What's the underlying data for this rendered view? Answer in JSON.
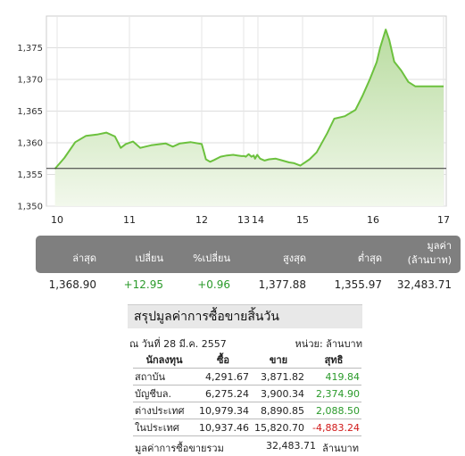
{
  "chart_data": {
    "type": "area",
    "title": "",
    "xlabel": "",
    "ylabel": "",
    "ylim": [
      1350,
      1380
    ],
    "yticks": [
      "1,350",
      "1,355",
      "1,360",
      "1,365",
      "1,370",
      "1,375"
    ],
    "xticks": [
      "10",
      "11",
      "12",
      "13",
      "14",
      "15",
      "16",
      "17"
    ],
    "previous_close": 1355.95,
    "series": [
      {
        "values": [
          [
            9.97,
            1355.9
          ],
          [
            10.1,
            1357.6
          ],
          [
            10.25,
            1360.1
          ],
          [
            10.4,
            1361.1
          ],
          [
            10.55,
            1361.3
          ],
          [
            10.68,
            1361.6
          ],
          [
            10.8,
            1361.0
          ],
          [
            10.88,
            1359.2
          ],
          [
            10.95,
            1359.8
          ],
          [
            11.05,
            1360.2
          ],
          [
            11.15,
            1359.2
          ],
          [
            11.3,
            1359.6
          ],
          [
            11.5,
            1359.9
          ],
          [
            11.6,
            1359.4
          ],
          [
            11.7,
            1359.9
          ],
          [
            11.85,
            1360.1
          ],
          [
            12.0,
            1359.8
          ],
          [
            12.05,
            1358.6
          ],
          [
            12.1,
            1357.4
          ],
          [
            12.2,
            1357.0
          ],
          [
            12.3,
            1357.3
          ],
          [
            12.45,
            1357.8
          ],
          [
            12.6,
            1358.0
          ],
          [
            12.75,
            1358.1
          ],
          [
            12.85,
            1358.0
          ],
          [
            12.95,
            1357.9
          ],
          [
            13.05,
            1357.9
          ],
          [
            13.15,
            1357.8
          ],
          [
            13.35,
            1358.2
          ],
          [
            13.55,
            1357.8
          ],
          [
            13.7,
            1358.0
          ],
          [
            13.8,
            1357.5
          ],
          [
            13.95,
            1358.1
          ],
          [
            14.05,
            1357.5
          ],
          [
            14.15,
            1357.2
          ],
          [
            14.25,
            1357.4
          ],
          [
            14.4,
            1357.5
          ],
          [
            14.55,
            1357.2
          ],
          [
            14.7,
            1356.9
          ],
          [
            14.8,
            1356.8
          ],
          [
            14.95,
            1356.4
          ],
          [
            15.1,
            1357.4
          ],
          [
            15.2,
            1358.5
          ],
          [
            15.35,
            1361.5
          ],
          [
            15.45,
            1363.8
          ],
          [
            15.6,
            1364.2
          ],
          [
            15.75,
            1365.2
          ],
          [
            15.85,
            1367.4
          ],
          [
            15.95,
            1369.9
          ],
          [
            16.05,
            1372.7
          ],
          [
            16.1,
            1375.0
          ],
          [
            16.18,
            1377.88
          ],
          [
            16.23,
            1376.2
          ],
          [
            16.3,
            1372.8
          ],
          [
            16.4,
            1371.4
          ],
          [
            16.5,
            1369.6
          ],
          [
            16.6,
            1368.9
          ],
          [
            16.85,
            1368.9
          ],
          [
            17.0,
            1368.9
          ]
        ]
      }
    ]
  },
  "summary": {
    "headers": {
      "last": "ล่าสุด",
      "change": "เปลี่ยน",
      "pct_change": "%เปลี่ยน",
      "high": "สูงสุด",
      "low": "ต่ำสุด",
      "value_line1": "มูลค่า",
      "value_line2": "(ล้านบาท)"
    },
    "values": {
      "last": "1,368.90",
      "change": "+12.95",
      "pct_change": "+0.96",
      "high": "1,377.88",
      "low": "1,355.97",
      "value": "32,483.71"
    },
    "colors": {
      "positive": "#2a9a2a",
      "negative": "#d11a1a",
      "header_bg": "#7f7f7f"
    }
  },
  "trade": {
    "title": "สรุปมูลค่าการซื้อขายสิ้นวัน",
    "date": "ณ วันที่ 28 มี.ค. 2557",
    "unit": "หน่วย: ล้านบาท",
    "columns": [
      "นักลงทุน",
      "ซื้อ",
      "ขาย",
      "สุทธิ"
    ],
    "rows": [
      {
        "investor": "สถาบัน",
        "buy": "4,291.67",
        "sell": "3,871.82",
        "net": "419.84",
        "sign": "pos"
      },
      {
        "investor": "บัญชีบล.",
        "buy": "6,275.24",
        "sell": "3,900.34",
        "net": "2,374.90",
        "sign": "pos"
      },
      {
        "investor": "ต่างประเทศ",
        "buy": "10,979.34",
        "sell": "8,890.85",
        "net": "2,088.50",
        "sign": "pos"
      },
      {
        "investor": "ในประเทศ",
        "buy": "10,937.46",
        "sell": "15,820.70",
        "net": "-4,883.24",
        "sign": "neg"
      }
    ],
    "total_label": "มูลค่าการซื้อขายรวม",
    "total_value": "32,483.71",
    "total_unit": "ล้านบาท"
  }
}
